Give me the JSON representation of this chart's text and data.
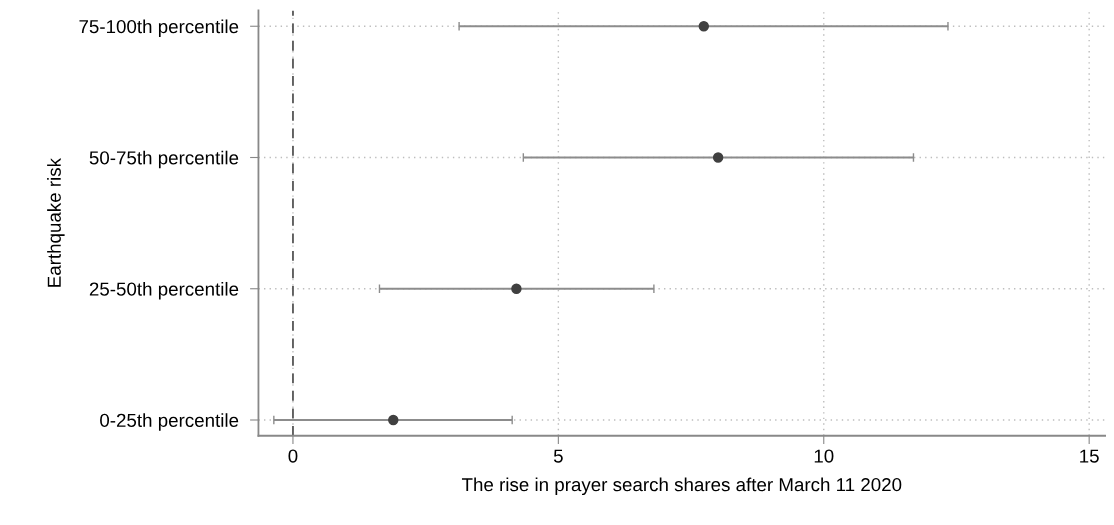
{
  "chart_data": {
    "type": "scatter",
    "orientation": "horizontal",
    "xlabel": "The rise in prayer search shares after March 11 2020",
    "ylabel": "Earthquake risk",
    "categories": [
      "75-100th percentile",
      "50-75th percentile",
      "25-50th percentile",
      "0-25th percentile"
    ],
    "series": [
      {
        "color": "#404040",
        "values": [
          7.74,
          8.01,
          4.21,
          1.89
        ],
        "errors": [
          [
            3.13,
            12.34
          ],
          [
            4.34,
            11.69
          ],
          [
            1.63,
            6.8
          ],
          [
            -0.36,
            4.13
          ]
        ]
      }
    ],
    "xlim": [
      -0.65,
      15.3
    ],
    "xticks": [
      0,
      5,
      10,
      15
    ],
    "grid": true,
    "marker": "circle",
    "ref_lines": [
      {
        "axis": "x",
        "value": 0,
        "color": "#606060",
        "line_style": "dashed"
      }
    ]
  }
}
